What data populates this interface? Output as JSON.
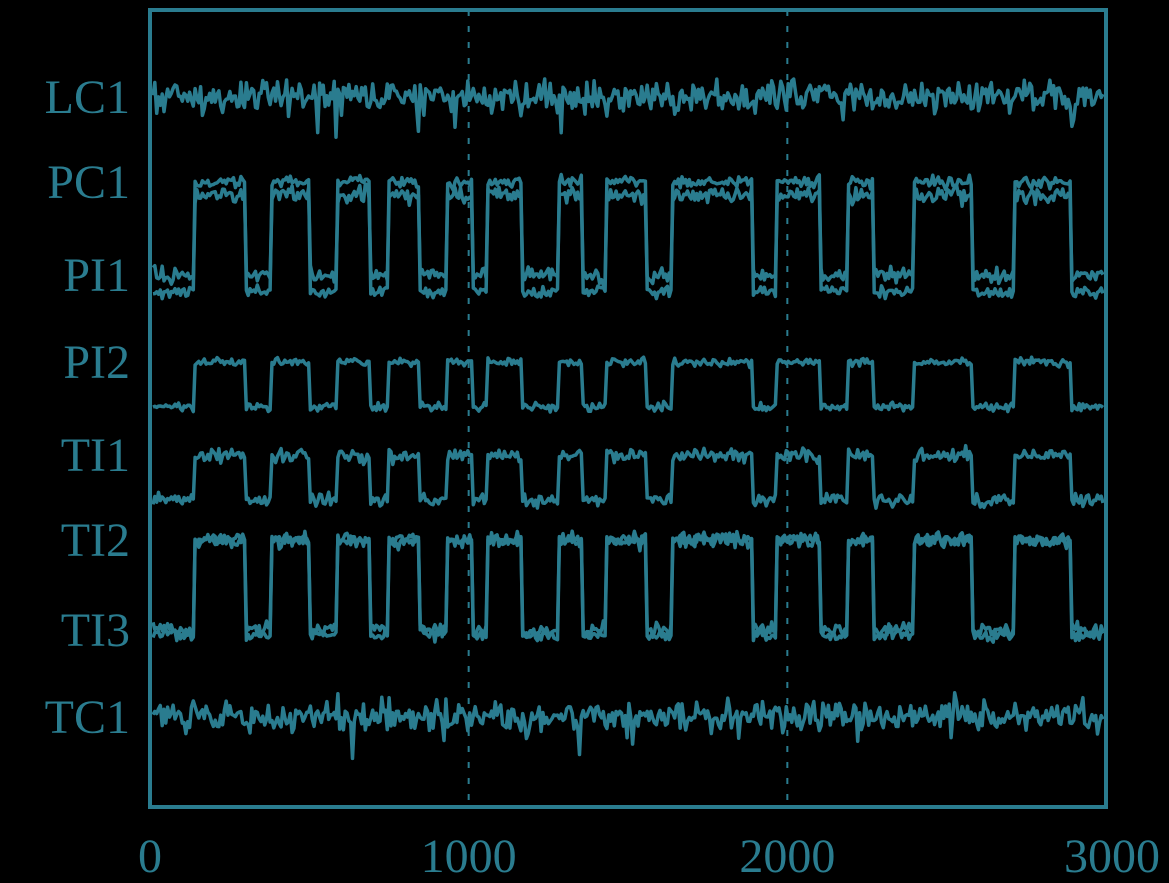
{
  "chart_data": {
    "type": "line",
    "title": "",
    "xlabel": "",
    "ylabel": "",
    "xlim": [
      0,
      3000
    ],
    "xticks": [
      {
        "value": 0,
        "label": "0"
      },
      {
        "value": 1000,
        "label": "1000"
      },
      {
        "value": 2000,
        "label": "2000"
      },
      {
        "value": 3000,
        "label": "3000"
      }
    ],
    "grid": "vertical dashed lines at x = 1000 and x = 2000",
    "color": "#2a7c8f",
    "background": "#000000",
    "series": [
      {
        "name": "LC1",
        "values": []
      },
      {
        "name": "PC1",
        "values": []
      },
      {
        "name": "PI1",
        "values": []
      },
      {
        "name": "PI2",
        "values": []
      },
      {
        "name": "TI1",
        "values": []
      },
      {
        "name": "TI2",
        "values": []
      },
      {
        "name": "TI3",
        "values": []
      },
      {
        "name": "TC1",
        "values": []
      }
    ]
  }
}
